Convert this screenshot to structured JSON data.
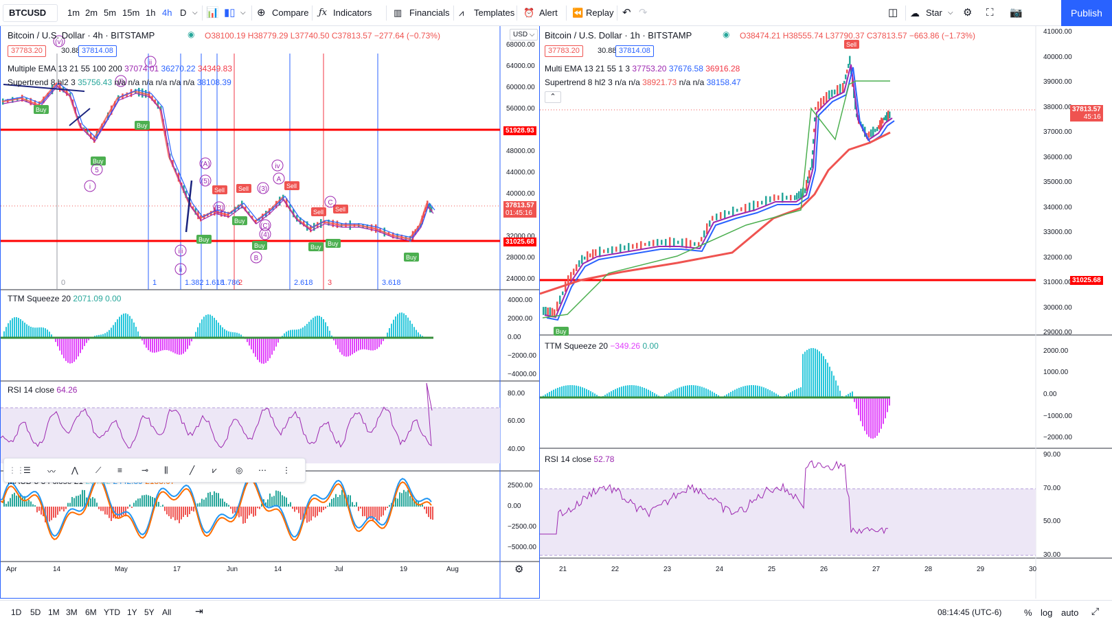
{
  "toolbar": {
    "symbol": "BTCUSD",
    "intervals": [
      "1m",
      "2m",
      "5m",
      "15m",
      "1h",
      "4h",
      "D"
    ],
    "active_interval": "4h",
    "compare": "Compare",
    "indicators": "Indicators",
    "financials": "Financials",
    "templates": "Templates",
    "alert": "Alert",
    "replay": "Replay",
    "star": "Star",
    "publish": "Publish"
  },
  "left": {
    "title": "Bitcoin / U.S. Dollar · 4h · BITSTAMP",
    "ohlc": "O38100.19 H38779.29 L37740.50 C37813.57 −277.64 (−0.73%)",
    "bid": "37783.20",
    "spread": "30.88",
    "ask": "37814.08",
    "ema_name": "Multiple EMA 13 21 55 100 200",
    "ema_vals": [
      "37074.01",
      "36270.22",
      "34349.83"
    ],
    "st_name": "Supertrend 8 hl2 3",
    "st_vals": [
      "35756.43",
      "n/a",
      "n/a",
      "n/a",
      "n/a",
      "n/a",
      "n/a",
      "38108.39"
    ],
    "currency": "USD",
    "price_ticks": [
      "68000.00",
      "64000.00",
      "60000.00",
      "56000.00",
      "48000.00",
      "44000.00",
      "40000.00",
      "32000.00",
      "28000.00",
      "24000.00"
    ],
    "hline_hi": "51928.93",
    "hline_lo": "31025.68",
    "last_price": "37813.57",
    "countdown": "01:45:16",
    "fib_labels": [
      "0",
      "1",
      "1.382",
      "1.618",
      "1.786",
      "2",
      "2.618",
      "3",
      "3.618"
    ],
    "ttm_name": "TTM Squeeze 20",
    "ttm_vals": [
      "2071.09",
      "0.00"
    ],
    "ttm_ticks": [
      "4000.00",
      "2000.00",
      "0.00",
      "−2000.00",
      "−4000.00"
    ],
    "rsi_name": "RSI 14 close",
    "rsi_val": "64.26",
    "rsi_ticks": [
      "80.00",
      "60.00",
      "40.00"
    ],
    "macd_name": "MACD 5 34 close 21",
    "macd_vals": [
      "254.82",
      "2442.89",
      "2188.07"
    ],
    "macd_ticks": [
      "2500.00",
      "0.00",
      "−2500.00",
      "−5000.00"
    ],
    "time_ticks": [
      "Apr",
      "14",
      "May",
      "17",
      "Jun",
      "14",
      "Jul",
      "19",
      "Aug"
    ],
    "tags": [
      "Buy",
      "Sell"
    ],
    "wave_labels": [
      "(v)",
      "(i)",
      "ii",
      "i",
      "(A)",
      "(B)",
      "(C)",
      "iv",
      "iii",
      "ii",
      "5",
      "B",
      "A",
      "C",
      "(3)",
      "(4)",
      "(5)"
    ]
  },
  "right": {
    "title": "Bitcoin / U.S. Dollar · 1h · BITSTAMP",
    "ohlc": "O38474.21 H38555.74 L37790.37 C37813.57 −663.86 (−1.73%)",
    "bid": "37783.20",
    "spread": "30.88",
    "ask": "37814.08",
    "ema_name": "Multi EMA 13 21 55 1 3",
    "ema_vals": [
      "37753.20",
      "37676.58",
      "36916.28"
    ],
    "st_name": "Supertrend 8 hl2 3",
    "st_vals": [
      "n/a",
      "n/a",
      "38921.73",
      "n/a",
      "n/a",
      "38158.47"
    ],
    "price_ticks": [
      "41000.00",
      "40000.00",
      "39000.00",
      "38000.00",
      "37000.00",
      "36000.00",
      "35000.00",
      "34000.00",
      "33000.00",
      "32000.00",
      "31000.00",
      "30000.00",
      "29000.00"
    ],
    "hline": "31025.68",
    "last_price": "37813.57",
    "countdown": "45:16",
    "ttm_name": "TTM Squeeze 20",
    "ttm_vals": [
      "−349.26",
      "0.00"
    ],
    "ttm_ticks": [
      "2000.00",
      "1000.00",
      "0.00",
      "−1000.00",
      "−2000.00"
    ],
    "rsi_name": "RSI 14 close",
    "rsi_val": "52.78",
    "rsi_ticks": [
      "90.00",
      "70.00",
      "50.00",
      "30.00"
    ],
    "time_ticks": [
      "21",
      "22",
      "23",
      "24",
      "25",
      "26",
      "27",
      "28",
      "29",
      "30"
    ]
  },
  "bottom": {
    "ranges": [
      "1D",
      "5D",
      "1M",
      "3M",
      "6M",
      "YTD",
      "1Y",
      "5Y",
      "All"
    ],
    "clock": "08:14:45 (UTC-6)",
    "pct": "%",
    "log": "log",
    "auto": "auto"
  },
  "colors": {
    "accent": "#2962ff",
    "up": "#26a69a",
    "down": "#ef5350",
    "hline": "#ff0000",
    "rsi": "#9c27b0",
    "ema_fast": "#2962ff",
    "ema_mid": "#9c27b0",
    "ema_slow": "#f23645"
  }
}
